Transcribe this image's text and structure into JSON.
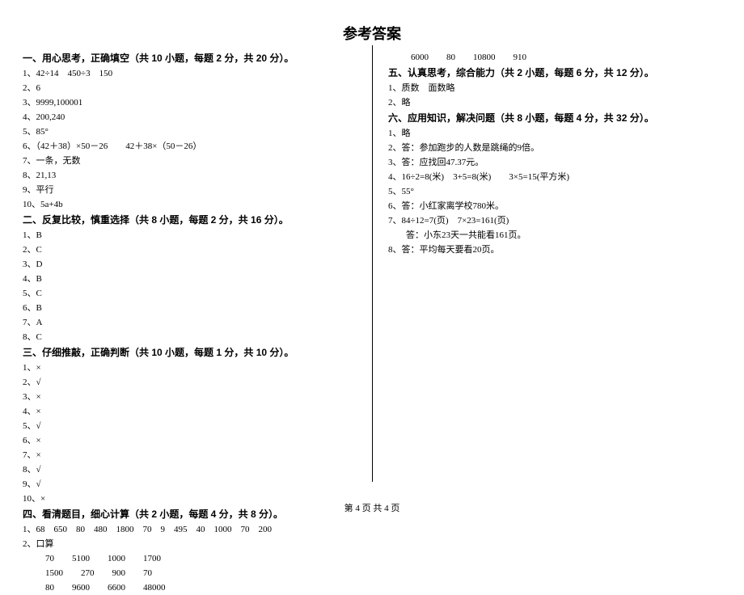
{
  "title": "参考答案",
  "footer": "第 4 页  共 4 页",
  "left": {
    "s1": {
      "header": "一、用心思考，正确填空（共 10 小题，每题 2 分，共 20 分）。",
      "i1": "1、42÷14　450÷3　150",
      "i2": "2、6",
      "i3": "3、9999,100001",
      "i4": "4、200,240",
      "i5": "5、85°",
      "i6": "6、（42＋38）×50－26　　42＋38×（50－26）",
      "i7": "7、一条，无数",
      "i8": "8、21,13",
      "i9": "9、平行",
      "i10": "10、5a+4b"
    },
    "s2": {
      "header": "二、反复比较，慎重选择（共 8 小题，每题 2 分，共 16 分）。",
      "i1": "1、B",
      "i2": "2、C",
      "i3": "3、D",
      "i4": "4、B",
      "i5": "5、C",
      "i6": "6、B",
      "i7": "7、A",
      "i8": "8、C"
    },
    "s3": {
      "header": "三、仔细推敲，正确判断（共 10 小题，每题 1 分，共 10 分）。",
      "i1": "1、×",
      "i2": "2、√",
      "i3": "3、×",
      "i4": "4、×",
      "i5": "5、√",
      "i6": "6、×",
      "i7": "7、×",
      "i8": "8、√",
      "i9": "9、√",
      "i10": "10、×"
    },
    "s4": {
      "header": "四、看清题目，细心计算（共 2 小题，每题 4 分，共 8 分）。",
      "i1": "1、68　650　80　480　1800　70　9　495　40　1000　70　200",
      "i2": "2、口算",
      "r1": "70　　5100　　1000　　1700",
      "r2": "1500　　270　　900　　70",
      "r3": "80　　9600　　6600　　48000"
    }
  },
  "right": {
    "s4tail": "6000　　80　　10800　　910",
    "s5": {
      "header": "五、认真思考，综合能力（共 2 小题，每题 6 分，共 12 分）。",
      "i1": "1、质数　面数略",
      "i2": "2、略"
    },
    "s6": {
      "header": "六、应用知识，解决问题（共 8 小题，每题 4 分，共 32 分）。",
      "i1": "1、略",
      "i2": "2、答：参加跑步的人数是跳绳的9倍。",
      "i3": "3、答：应找回47.37元。",
      "i4": "4、16÷2=8(米)　3+5=8(米)　　3×5=15(平方米)",
      "i5": "5、55°",
      "i6": "6、答：小红家离学校780米。",
      "i7a": "7、84÷12=7(页)　7×23=161(页)",
      "i7b": "　　答：小东23天一共能看161页。",
      "i8": "8、答：平均每天要看20页。"
    }
  }
}
